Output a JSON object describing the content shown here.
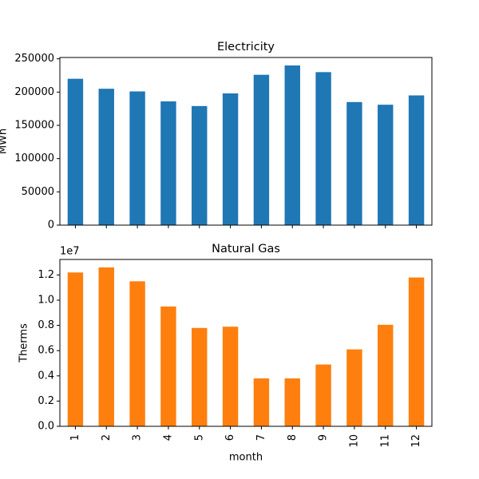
{
  "chart_data": [
    {
      "type": "bar",
      "title": "Electricity",
      "ylabel": "MWh",
      "color": "#1f77b4",
      "values": [
        220000,
        205000,
        201000,
        186000,
        179000,
        198000,
        226000,
        240000,
        230000,
        185000,
        181000,
        195000
      ],
      "ylim": [
        0,
        252000
      ],
      "yticks": [
        0,
        50000,
        100000,
        150000,
        200000,
        250000
      ]
    },
    {
      "type": "bar",
      "title": "Natural Gas",
      "ylabel": "Therms",
      "xlabel": "month",
      "offset_text": "1e7",
      "color": "#ff7f0e",
      "categories": [
        "1",
        "2",
        "3",
        "4",
        "5",
        "6",
        "7",
        "8",
        "9",
        "10",
        "11",
        "12"
      ],
      "values": [
        12200000,
        12600000,
        11500000,
        9500000,
        7800000,
        7900000,
        3800000,
        3800000,
        4900000,
        6100000,
        8050000,
        11800000
      ],
      "ylim": [
        0,
        13230000
      ],
      "yticks": [
        {
          "value": 0,
          "label": "0.0"
        },
        {
          "value": 2000000,
          "label": "0.2"
        },
        {
          "value": 4000000,
          "label": "0.4"
        },
        {
          "value": 6000000,
          "label": "0.6"
        },
        {
          "value": 8000000,
          "label": "0.8"
        },
        {
          "value": 10000000,
          "label": "1.0"
        },
        {
          "value": 12000000,
          "label": "1.2"
        }
      ]
    }
  ]
}
